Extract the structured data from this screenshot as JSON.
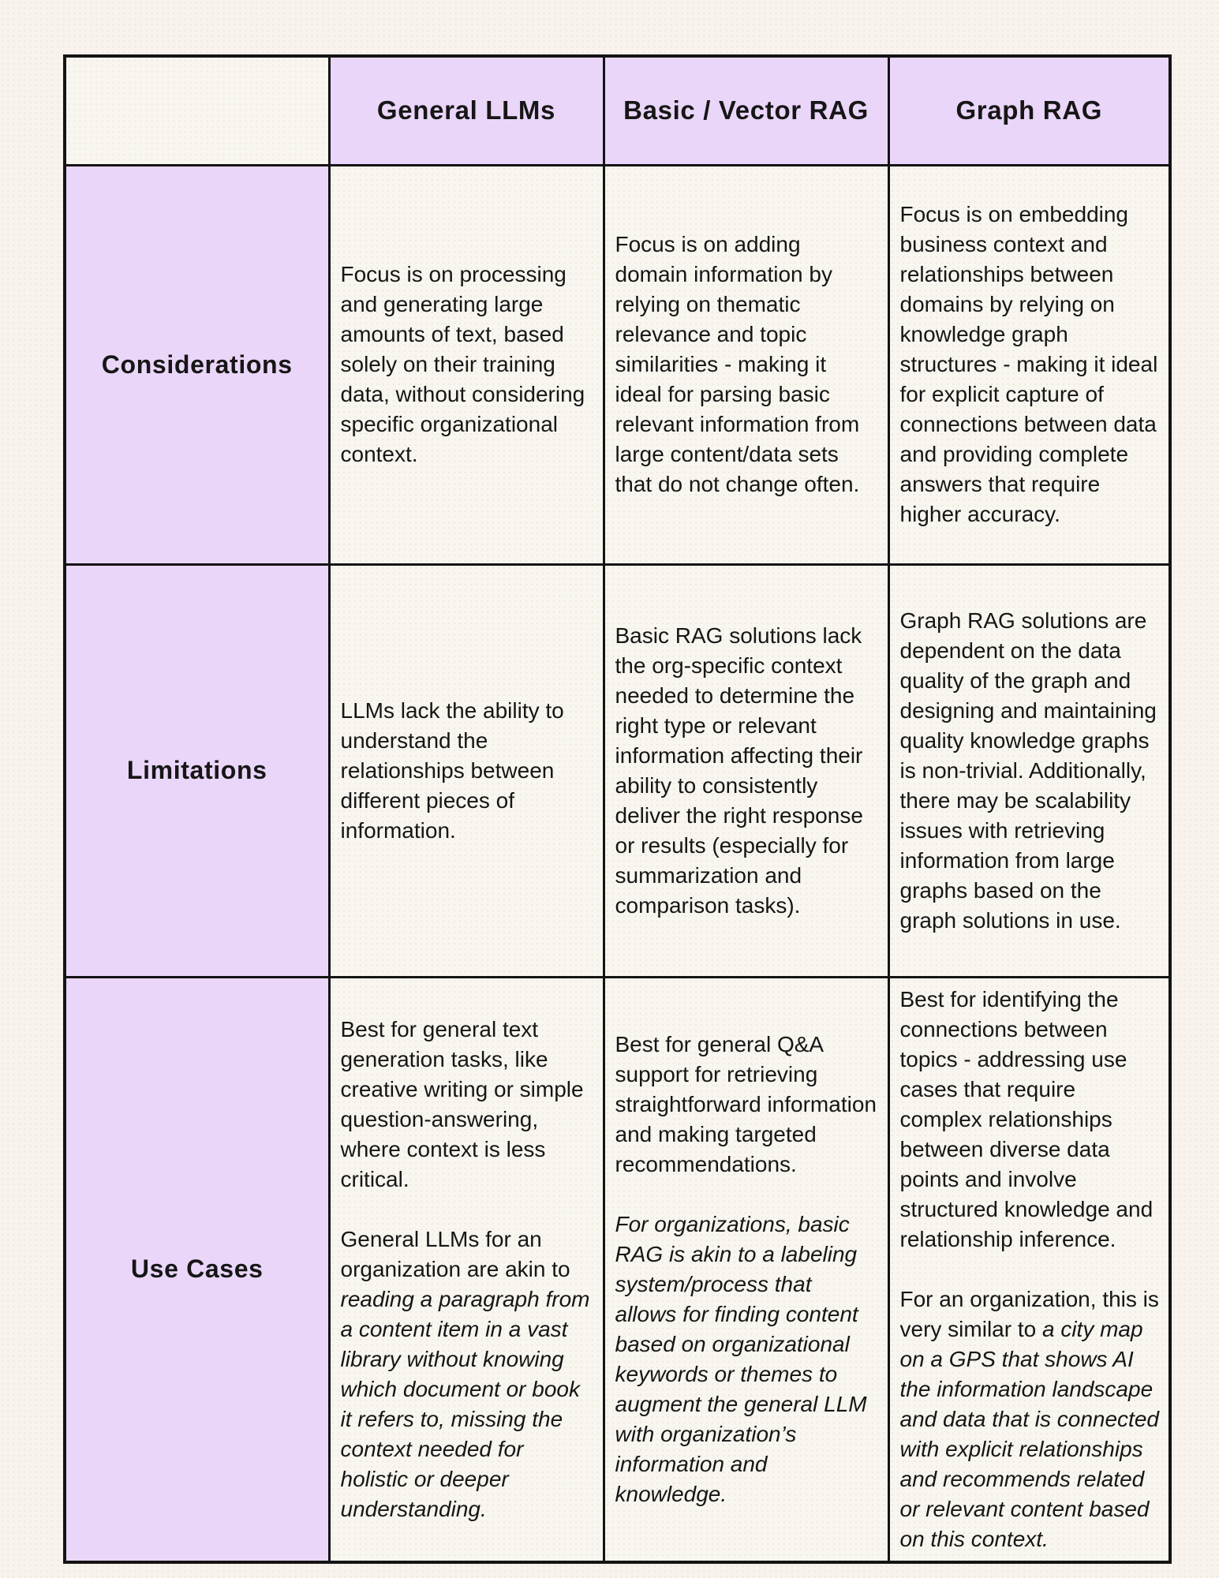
{
  "colors": {
    "table_border": "#141414",
    "header_purple": "#EAD6F9",
    "label_purple": "#EAD6F9",
    "page_cream": "#F8F4ED",
    "cell_cream": "#F9F5EF",
    "text": "#161616"
  },
  "table": {
    "columns": [
      {
        "id": "general_llms",
        "label": "General LLMs"
      },
      {
        "id": "basic_vector_rag",
        "label": "Basic / Vector RAG"
      },
      {
        "id": "graph_rag",
        "label": "Graph RAG"
      }
    ],
    "rows": [
      {
        "label": "Considerations",
        "cells": [
          [
            [
              {
                "text": "Focus is on processing and generating large amounts of text, based solely on their training data, without considering specific organizational context.",
                "italic": false
              }
            ]
          ],
          [
            [
              {
                "text": "Focus is on adding domain information by relying on thematic relevance and topic similarities - making it ideal for parsing basic relevant information from large content/data sets that do not change often.",
                "italic": false
              }
            ]
          ],
          [
            [
              {
                "text": "Focus is on embedding business context and relationships between domains by relying on knowledge graph structures - making it ideal for explicit capture of connections between data and providing complete answers that require higher accuracy.",
                "italic": false
              }
            ]
          ]
        ]
      },
      {
        "label": "Limitations",
        "cells": [
          [
            [
              {
                "text": "LLMs lack the ability to understand the relationships between different pieces of information.",
                "italic": false
              }
            ]
          ],
          [
            [
              {
                "text": "Basic RAG solutions lack the org-specific context needed to determine the right type or relevant information affecting their ability to consistently deliver the right response or results (especially for summarization and comparison tasks).",
                "italic": false
              }
            ]
          ],
          [
            [
              {
                "text": "Graph RAG solutions are dependent on the data quality of the graph and designing and maintaining quality knowledge graphs is non-trivial. Additionally, there may be scalability issues with retrieving information from large graphs based on the graph solutions in use.",
                "italic": false
              }
            ]
          ]
        ]
      },
      {
        "label": "Use Cases",
        "cells": [
          [
            [
              {
                "text": "Best for general text generation tasks, like creative writing or simple question-answering, where context is less critical.",
                "italic": false
              }
            ],
            [
              {
                "text": "General LLMs for an organization are akin to ",
                "italic": false
              },
              {
                "text": "reading a paragraph from a content item in a vast library without knowing which document or book it refers to, missing the context needed for holistic or deeper understanding.",
                "italic": true
              }
            ]
          ],
          [
            [
              {
                "text": "Best for general Q&A support for retrieving straightforward information and making targeted recommendations.",
                "italic": false
              }
            ],
            [
              {
                "text": "For organizations, basic RAG is akin to a labeling system/process that allows for finding content based on organizational keywords or themes to augment the general LLM with organization’s information and knowledge.",
                "italic": true
              }
            ]
          ],
          [
            [
              {
                "text": "Best for identifying the connections between topics - addressing use cases that require complex relationships between diverse data points and involve structured knowledge and relationship inference.",
                "italic": false
              }
            ],
            [
              {
                "text": "For an organization, this is very similar to ",
                "italic": false
              },
              {
                "text": "a city map on a GPS that shows AI the information landscape and data that is connected with explicit relationships and recommends related or relevant content based on this context.",
                "italic": true
              }
            ]
          ]
        ]
      }
    ]
  }
}
